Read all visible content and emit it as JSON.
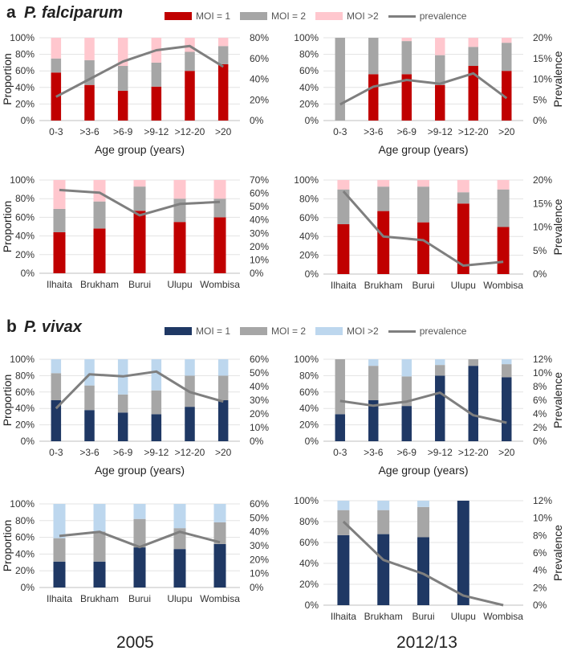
{
  "panels": {
    "a": {
      "letter": "a",
      "species": "P. falciparum"
    },
    "b": {
      "letter": "b",
      "species": "P. vivax"
    }
  },
  "legend_a": {
    "items": [
      {
        "label": "MOI = 1",
        "color": "#c00000",
        "kind": "box"
      },
      {
        "label": "MOI = 2",
        "color": "#a6a6a6",
        "kind": "box"
      },
      {
        "label": "MOI >2",
        "color": "#ffc7ce",
        "kind": "box"
      },
      {
        "label": "prevalence",
        "color": "#7f7f7f",
        "kind": "line"
      }
    ]
  },
  "legend_b": {
    "items": [
      {
        "label": "MOI = 1",
        "color": "#1f3864",
        "kind": "box"
      },
      {
        "label": "MOI = 2",
        "color": "#a6a6a6",
        "kind": "box"
      },
      {
        "label": "MOI >2",
        "color": "#bdd7ee",
        "kind": "box"
      },
      {
        "label": "prevalence",
        "color": "#7f7f7f",
        "kind": "line"
      }
    ]
  },
  "years": {
    "left": "2005",
    "right": "2012/13"
  },
  "chart_data": [
    {
      "id": "a-age-2005",
      "type": "bar",
      "stacked": true,
      "panel": "a",
      "categories": [
        "0-3",
        ">3-6",
        ">6-9",
        ">9-12",
        ">12-20",
        ">20"
      ],
      "series": [
        {
          "name": "MOI = 1",
          "values": [
            58,
            43,
            36,
            41,
            60,
            68
          ],
          "color": "#c00000"
        },
        {
          "name": "MOI = 2",
          "values": [
            17,
            30,
            30,
            29,
            23,
            22
          ],
          "color": "#a6a6a6"
        },
        {
          "name": "MOI >2",
          "values": [
            25,
            27,
            34,
            30,
            17,
            10
          ],
          "color": "#ffc7ce"
        }
      ],
      "line": {
        "name": "prevalence",
        "values": [
          23,
          40,
          57,
          68,
          72,
          52
        ],
        "color": "#7f7f7f"
      },
      "ylabel": "Proportion",
      "y2label": "",
      "xlabel": "Age group (years)",
      "ylim": [
        0,
        100
      ],
      "y2lim": [
        0,
        80
      ],
      "yticks": [
        "0%",
        "20%",
        "40%",
        "60%",
        "80%",
        "100%"
      ],
      "y2ticks": [
        "0%",
        "20%",
        "40%",
        "60%",
        "80%"
      ]
    },
    {
      "id": "a-age-2012",
      "type": "bar",
      "stacked": true,
      "panel": "a",
      "categories": [
        "0-3",
        ">3-6",
        ">6-9",
        ">9-12",
        ">12-20",
        ">20"
      ],
      "series": [
        {
          "name": "MOI = 1",
          "values": [
            0,
            56,
            56,
            43,
            66,
            60
          ],
          "color": "#c00000"
        },
        {
          "name": "MOI = 2",
          "values": [
            100,
            44,
            40,
            36,
            23,
            34
          ],
          "color": "#a6a6a6"
        },
        {
          "name": "MOI >2",
          "values": [
            0,
            0,
            4,
            21,
            11,
            6
          ],
          "color": "#ffc7ce"
        }
      ],
      "line": {
        "name": "prevalence",
        "values": [
          3.9,
          8.2,
          9.8,
          8.9,
          11.4,
          5.4
        ],
        "color": "#7f7f7f"
      },
      "ylabel": "",
      "y2label": "Prevalence",
      "xlabel": "Age group (years)",
      "ylim": [
        0,
        100
      ],
      "y2lim": [
        0,
        20
      ],
      "yticks": [
        "0%",
        "20%",
        "40%",
        "60%",
        "80%",
        "100%"
      ],
      "y2ticks": [
        "0%",
        "5%",
        "10%",
        "15%",
        "20%"
      ]
    },
    {
      "id": "a-village-2005",
      "type": "bar",
      "stacked": true,
      "panel": "a",
      "categories": [
        "Ilhaita",
        "Brukham",
        "Burui",
        "Ulupu",
        "Wombisa"
      ],
      "series": [
        {
          "name": "MOI = 1",
          "values": [
            44,
            48,
            67,
            55,
            60
          ],
          "color": "#c00000"
        },
        {
          "name": "MOI = 2",
          "values": [
            25,
            29,
            26,
            25,
            20
          ],
          "color": "#a6a6a6"
        },
        {
          "name": "MOI >2",
          "values": [
            31,
            23,
            7,
            20,
            20
          ],
          "color": "#ffc7ce"
        }
      ],
      "line": {
        "name": "prevalence",
        "values": [
          62.5,
          60.5,
          43.5,
          52,
          53.5
        ],
        "color": "#7f7f7f"
      },
      "ylabel": "Proportion",
      "y2label": "",
      "xlabel": "",
      "ylim": [
        0,
        100
      ],
      "y2lim": [
        0,
        70
      ],
      "yticks": [
        "0%",
        "20%",
        "40%",
        "60%",
        "80%",
        "100%"
      ],
      "y2ticks": [
        "0%",
        "10%",
        "20%",
        "30%",
        "40%",
        "50%",
        "60%",
        "70%"
      ]
    },
    {
      "id": "a-village-2012",
      "type": "bar",
      "stacked": true,
      "panel": "a",
      "categories": [
        "Ilhaita",
        "Brukham",
        "Burui",
        "Ulupu",
        "Wombisa"
      ],
      "series": [
        {
          "name": "MOI = 1",
          "values": [
            53,
            67,
            55,
            75,
            50
          ],
          "color": "#c00000"
        },
        {
          "name": "MOI = 2",
          "values": [
            37,
            26,
            38,
            12,
            40
          ],
          "color": "#a6a6a6"
        },
        {
          "name": "MOI >2",
          "values": [
            10,
            7,
            7,
            13,
            10
          ],
          "color": "#ffc7ce"
        }
      ],
      "line": {
        "name": "prevalence",
        "values": [
          17.6,
          8,
          7.2,
          1.8,
          2.6
        ],
        "color": "#7f7f7f"
      },
      "ylabel": "",
      "y2label": "Prevalence",
      "xlabel": "",
      "ylim": [
        0,
        100
      ],
      "y2lim": [
        0,
        20
      ],
      "yticks": [
        "0%",
        "20%",
        "40%",
        "60%",
        "80%",
        "100%"
      ],
      "y2ticks": [
        "0%",
        "5%",
        "10%",
        "15%",
        "20%"
      ]
    },
    {
      "id": "b-age-2005",
      "type": "bar",
      "stacked": true,
      "panel": "b",
      "categories": [
        "0-3",
        ">3-6",
        ">6-9",
        ">9-12",
        ">12-20",
        ">20"
      ],
      "series": [
        {
          "name": "MOI = 1",
          "values": [
            50,
            38,
            35,
            33,
            42,
            50
          ],
          "color": "#1f3864"
        },
        {
          "name": "MOI = 2",
          "values": [
            33,
            30,
            22,
            29,
            38,
            30
          ],
          "color": "#a6a6a6"
        },
        {
          "name": "MOI >2",
          "values": [
            17,
            32,
            43,
            38,
            20,
            20
          ],
          "color": "#bdd7ee"
        }
      ],
      "line": {
        "name": "prevalence",
        "values": [
          24,
          49,
          47.5,
          51,
          36,
          29
        ],
        "color": "#7f7f7f"
      },
      "ylabel": "Proportion",
      "y2label": "",
      "xlabel": "Age group (years)",
      "ylim": [
        0,
        100
      ],
      "y2lim": [
        0,
        60
      ],
      "yticks": [
        "0%",
        "20%",
        "40%",
        "60%",
        "80%",
        "100%"
      ],
      "y2ticks": [
        "0%",
        "10%",
        "20%",
        "30%",
        "40%",
        "50%",
        "60%"
      ]
    },
    {
      "id": "b-age-2012",
      "type": "bar",
      "stacked": true,
      "panel": "b",
      "categories": [
        "0-3",
        ">3-6",
        ">6-9",
        ">9-12",
        ">12-20",
        ">20"
      ],
      "series": [
        {
          "name": "MOI = 1",
          "values": [
            33,
            50,
            43,
            80,
            92,
            78
          ],
          "color": "#1f3864"
        },
        {
          "name": "MOI = 2",
          "values": [
            67,
            42,
            36,
            13,
            8,
            16
          ],
          "color": "#a6a6a6"
        },
        {
          "name": "MOI >2",
          "values": [
            0,
            8,
            21,
            7,
            0,
            6
          ],
          "color": "#bdd7ee"
        }
      ],
      "line": {
        "name": "prevalence",
        "values": [
          5.9,
          5.2,
          5.8,
          7.1,
          3.8,
          2.7
        ],
        "color": "#7f7f7f"
      },
      "ylabel": "",
      "y2label": "Prevalence",
      "xlabel": "Age group (years)",
      "ylim": [
        0,
        100
      ],
      "y2lim": [
        0,
        12
      ],
      "yticks": [
        "0%",
        "20%",
        "40%",
        "60%",
        "80%",
        "100%"
      ],
      "y2ticks": [
        "0%",
        "2%",
        "4%",
        "6%",
        "8%",
        "10%",
        "12%"
      ]
    },
    {
      "id": "b-village-2005",
      "type": "bar",
      "stacked": true,
      "panel": "b",
      "categories": [
        "Ilhaita",
        "Brukham",
        "Burui",
        "Ulupu",
        "Wombisa"
      ],
      "series": [
        {
          "name": "MOI = 1",
          "values": [
            31,
            31,
            48,
            46,
            52
          ],
          "color": "#1f3864"
        },
        {
          "name": "MOI = 2",
          "values": [
            28,
            36,
            34,
            25,
            26
          ],
          "color": "#a6a6a6"
        },
        {
          "name": "MOI >2",
          "values": [
            41,
            33,
            18,
            29,
            22
          ],
          "color": "#bdd7ee"
        }
      ],
      "line": {
        "name": "prevalence",
        "values": [
          37,
          40,
          29,
          40,
          32.5
        ],
        "color": "#7f7f7f"
      },
      "ylabel": "Proportion",
      "y2label": "",
      "xlabel": "",
      "ylim": [
        0,
        100
      ],
      "y2lim": [
        0,
        60
      ],
      "yticks": [
        "0%",
        "20%",
        "40%",
        "60%",
        "80%",
        "100%"
      ],
      "y2ticks": [
        "0%",
        "10%",
        "20%",
        "30%",
        "40%",
        "50%",
        "60%"
      ]
    },
    {
      "id": "b-village-2012",
      "type": "bar",
      "stacked": true,
      "panel": "b",
      "categories": [
        "Ilhaita",
        "Brukham",
        "Burui",
        "Ulupu",
        "Wombisa"
      ],
      "series": [
        {
          "name": "MOI = 1",
          "values": [
            67,
            68,
            65,
            100,
            0
          ],
          "color": "#1f3864"
        },
        {
          "name": "MOI = 2",
          "values": [
            24,
            23,
            29,
            0,
            0
          ],
          "color": "#a6a6a6"
        },
        {
          "name": "MOI >2",
          "values": [
            9,
            9,
            6,
            0,
            0
          ],
          "color": "#bdd7ee"
        }
      ],
      "line": {
        "name": "prevalence",
        "values": [
          9.6,
          5.2,
          3.6,
          1.1,
          0
        ],
        "color": "#7f7f7f"
      },
      "ylabel": "",
      "y2label": "Prevalence",
      "xlabel": "",
      "ylim": [
        0,
        100
      ],
      "y2lim": [
        0,
        12
      ],
      "yticks": [
        "0%",
        "20%",
        "40%",
        "60%",
        "80%",
        "100%"
      ],
      "y2ticks": [
        "0%",
        "2%",
        "4%",
        "6%",
        "8%",
        "10%",
        "12%"
      ]
    }
  ]
}
